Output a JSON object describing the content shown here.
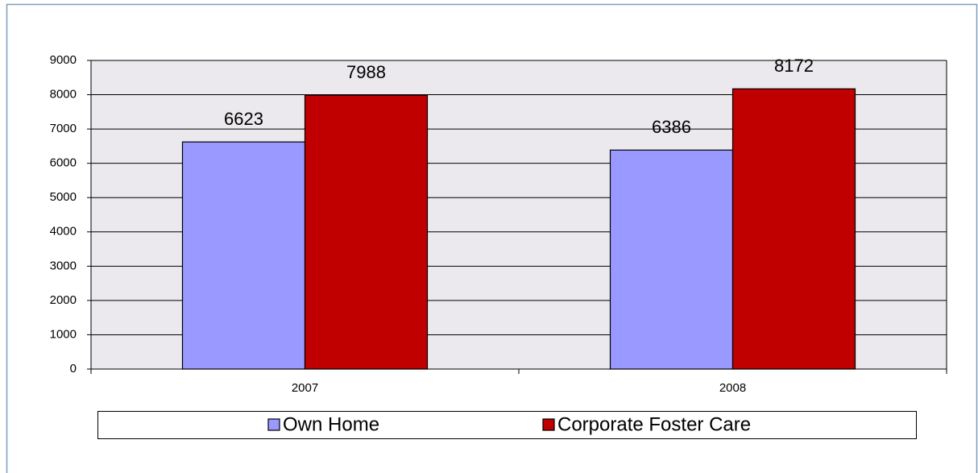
{
  "chart_data": {
    "type": "bar",
    "categories": [
      "2007",
      "2008"
    ],
    "series": [
      {
        "name": "Own Home",
        "color": "#9999ff",
        "values": [
          6623,
          6386
        ]
      },
      {
        "name": "Corporate Foster Care",
        "color": "#c00000",
        "values": [
          7988,
          8172
        ]
      }
    ],
    "ylim": [
      0,
      9000
    ],
    "yticks": [
      0,
      1000,
      2000,
      3000,
      4000,
      5000,
      6000,
      7000,
      8000,
      9000
    ],
    "grid": true,
    "legend": "bottom"
  }
}
